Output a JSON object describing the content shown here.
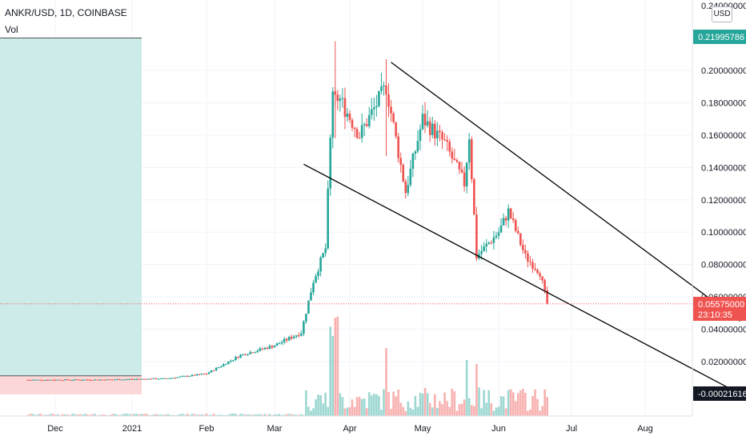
{
  "header": {
    "symbol": "ANKR/USD, 1D, COINBASE",
    "volume_label": "Vol",
    "currency": "USD"
  },
  "price_scale": {
    "ticks": [
      "0.24000000",
      "0.20000000",
      "0.18000000",
      "0.16000000",
      "0.14000000",
      "0.12000000",
      "0.10000000",
      "0.08000000",
      "0.06000000",
      "0.04000000",
      "0.02000000"
    ],
    "highlighted_top": {
      "label": "0.21995786",
      "color": "#26a69a"
    },
    "last_price": {
      "label": "0.05575000",
      "countdown": "23:10:35",
      "color": "#ef5350"
    },
    "low_marker": {
      "label": "-0.00021616",
      "color": "#131722"
    }
  },
  "time_axis": {
    "labels": [
      "Dec",
      "2021",
      "Feb",
      "Mar",
      "Apr",
      "May",
      "Jun",
      "Jul",
      "Aug"
    ]
  },
  "colors": {
    "up": "#26a69a",
    "down": "#ef5350",
    "upper_zone": "#cdebe8",
    "lower_zone": "#fcd7d7",
    "trendline": "#000000",
    "grid": "#f0f3fa"
  },
  "chart_data": {
    "type": "candlestick",
    "x_unit": "date",
    "y_unit": "USD",
    "ylim": [
      -0.005,
      0.24
    ],
    "grid": true,
    "series": [
      {
        "name": "price",
        "points": [
          {
            "date": "2020-11-20",
            "close": 0.0087
          },
          {
            "date": "2020-12-20",
            "close": 0.0088
          },
          {
            "date": "2021-01-15",
            "close": 0.0095
          },
          {
            "date": "2021-02-01",
            "close": 0.0125
          },
          {
            "date": "2021-02-15",
            "close": 0.024
          },
          {
            "date": "2021-03-01",
            "close": 0.03
          },
          {
            "date": "2021-03-12",
            "close": 0.038
          },
          {
            "date": "2021-03-17",
            "close": 0.07
          },
          {
            "date": "2021-03-22",
            "close": 0.09
          },
          {
            "date": "2021-03-25",
            "close": 0.19
          },
          {
            "date": "2021-03-26",
            "high": 0.218
          },
          {
            "date": "2021-04-05",
            "close": 0.16
          },
          {
            "date": "2021-04-16",
            "close": 0.19
          },
          {
            "date": "2021-04-16",
            "high": 0.207
          },
          {
            "date": "2021-04-24",
            "close": 0.125
          },
          {
            "date": "2021-05-01",
            "close": 0.17
          },
          {
            "date": "2021-05-10",
            "close": 0.155
          },
          {
            "date": "2021-05-18",
            "close": 0.13
          },
          {
            "date": "2021-05-20",
            "close": 0.16
          },
          {
            "date": "2021-05-23",
            "close": 0.085
          },
          {
            "date": "2021-06-01",
            "close": 0.1
          },
          {
            "date": "2021-06-05",
            "close": 0.113
          },
          {
            "date": "2021-06-12",
            "close": 0.085
          },
          {
            "date": "2021-06-18",
            "close": 0.075
          },
          {
            "date": "2021-06-21",
            "close": 0.0558
          }
        ]
      }
    ],
    "trendlines": [
      {
        "from": {
          "date": "2021-04-18",
          "price": 0.205
        },
        "to": {
          "date": "2021-09-10",
          "price": 0.045
        }
      },
      {
        "from": {
          "date": "2021-03-13",
          "price": 0.142
        },
        "to": {
          "date": "2021-09-10",
          "price": 0.0
        }
      }
    ],
    "zones": [
      {
        "from": "2020-11-01",
        "to": "2021-01-05",
        "price_from": 0.0112,
        "price_to": 0.22,
        "color": "upper_zone"
      },
      {
        "from": "2020-11-01",
        "to": "2021-01-05",
        "price_from": -0.0002,
        "price_to": 0.0112,
        "color": "lower_zone"
      }
    ],
    "volume_note": "volume bars shown at bottom; spikes near late March, mid April, mid May, late May"
  }
}
